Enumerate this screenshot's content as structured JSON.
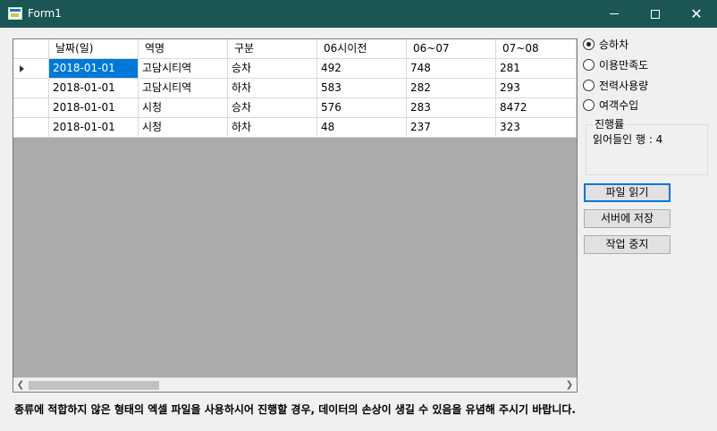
{
  "window": {
    "title": "Form1",
    "icon": "form-app-icon"
  },
  "grid": {
    "columns": [
      "날짜(일)",
      "역명",
      "구분",
      "06시이전",
      "06~07",
      "07~08"
    ],
    "rows": [
      [
        "2018-01-01",
        "고담시티역",
        "승차",
        "492",
        "748",
        "281"
      ],
      [
        "2018-01-01",
        "고담시티역",
        "하차",
        "583",
        "282",
        "293"
      ],
      [
        "2018-01-01",
        "시청",
        "승차",
        "576",
        "283",
        "8472"
      ],
      [
        "2018-01-01",
        "시청",
        "하차",
        "48",
        "237",
        "323"
      ]
    ],
    "current_row_indicator": "row-pointer-icon"
  },
  "radios": {
    "items": [
      "승하차",
      "이용만족도",
      "전력사용량",
      "여객수입"
    ],
    "selected": "승하차"
  },
  "progress": {
    "legend": "진행률",
    "status": "읽어들인 행 : 4"
  },
  "buttons": {
    "read_file": "파일 읽기",
    "save_server": "서버에 저장",
    "stop": "작업 중지"
  },
  "warning": "종류에 적합하지 않은 형태의 엑셀 파일을 사용하시어 진행할 경우, 데이터의 손상이 생길 수 있음을 유념해 주시기 바랍니다.",
  "colors": {
    "titlebar": "#1b5654",
    "selection": "#0078d7",
    "grid_empty": "#ababab"
  }
}
